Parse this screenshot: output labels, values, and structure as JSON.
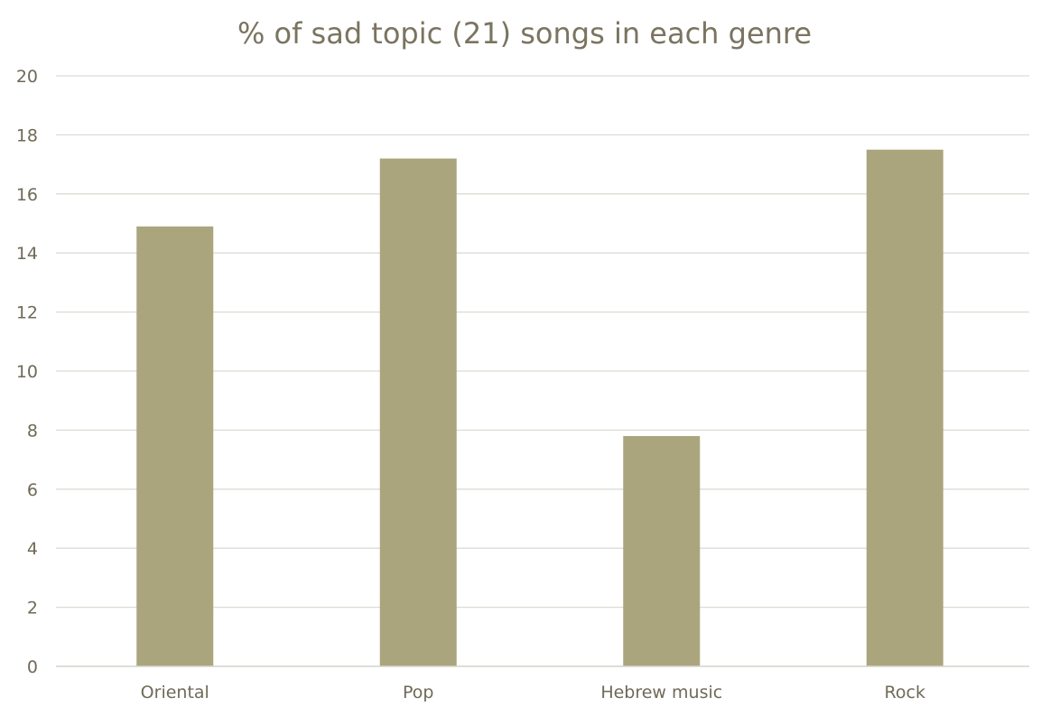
{
  "chart_data": {
    "type": "bar",
    "title": "% of sad topic (21) songs in each genre",
    "categories": [
      "Oriental",
      "Pop",
      "Hebrew music",
      "Rock"
    ],
    "values": [
      14.9,
      17.2,
      7.8,
      17.5
    ],
    "xlabel": "",
    "ylabel": "",
    "ylim": [
      0,
      20
    ],
    "yticks": [
      "0",
      "2",
      "4",
      "6",
      "8",
      "10",
      "12",
      "14",
      "16",
      "18",
      "20"
    ],
    "grid": true,
    "legend": "none",
    "colors": {
      "bar": "#aaa57d",
      "title": "#7a7460",
      "text": "#6f6a58",
      "grid": "#dcdcd4"
    }
  }
}
